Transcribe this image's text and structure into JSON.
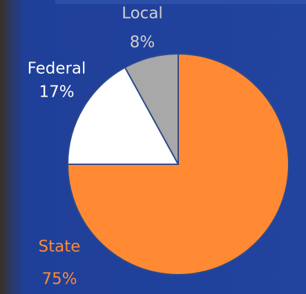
{
  "chart_data": {
    "type": "pie",
    "categories": [
      "State",
      "Federal",
      "Local"
    ],
    "values": [
      75,
      17,
      8
    ],
    "value_labels": [
      "75%",
      "17%",
      "8%"
    ],
    "colors": [
      "#ff8a33",
      "#ffffff",
      "#a8a8a8"
    ],
    "label_colors": [
      "#ff8a33",
      "#ffffff",
      "#d0d0d0"
    ]
  }
}
